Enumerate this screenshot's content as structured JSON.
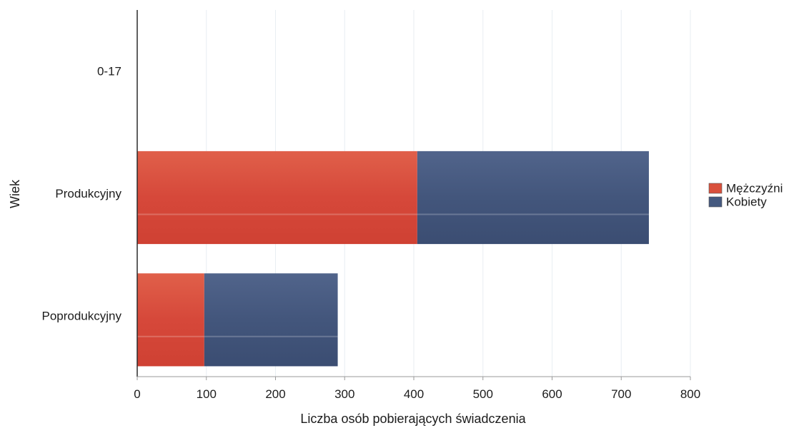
{
  "chart_data": {
    "type": "bar",
    "orientation": "horizontal",
    "stacked": true,
    "categories": [
      "0-17",
      "Produkcyjny",
      "Poprodukcyjny"
    ],
    "series": [
      {
        "name": "Mężczyźni",
        "values": [
          0,
          405,
          97
        ],
        "color": "#d9503c"
      },
      {
        "name": "Kobiety",
        "values": [
          0,
          335,
          193
        ],
        "color": "#45597f"
      }
    ],
    "xlabel": "Liczba osób pobierających świadczenia",
    "ylabel": "Wiek",
    "xlim": [
      0,
      800
    ],
    "xticks": [
      0,
      100,
      200,
      300,
      400,
      500,
      600,
      700,
      800
    ],
    "grid": "vertical",
    "legend": "right"
  }
}
